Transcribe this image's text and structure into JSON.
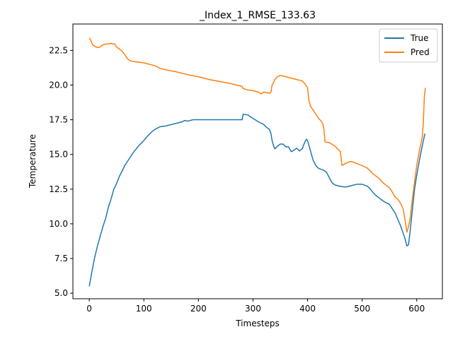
{
  "chart_data": {
    "type": "line",
    "title": "_Index_1_RMSE_133.63",
    "xlabel": "Timesteps",
    "ylabel": "Temperature",
    "xlim": [
      -30,
      647
    ],
    "ylim": [
      4.6,
      24.4
    ],
    "xticks": [
      0,
      100,
      200,
      300,
      400,
      500,
      600
    ],
    "xtick_labels": [
      "0",
      "100",
      "200",
      "300",
      "400",
      "500",
      "600"
    ],
    "yticks": [
      5.0,
      7.5,
      10.0,
      12.5,
      15.0,
      17.5,
      20.0,
      22.5
    ],
    "ytick_labels": [
      "5.0",
      "7.5",
      "10.0",
      "12.5",
      "15.0",
      "17.5",
      "20.0",
      "22.5"
    ],
    "grid": false,
    "legend": "top-right",
    "series": [
      {
        "name": "True",
        "color": "#1f77b4",
        "points": [
          [
            0,
            5.5
          ],
          [
            5,
            6.6
          ],
          [
            10,
            7.6
          ],
          [
            15,
            8.4
          ],
          [
            20,
            9.1
          ],
          [
            25,
            9.8
          ],
          [
            30,
            10.4
          ],
          [
            35,
            11.2
          ],
          [
            40,
            11.8
          ],
          [
            45,
            12.5
          ],
          [
            50,
            12.9
          ],
          [
            55,
            13.4
          ],
          [
            60,
            13.8
          ],
          [
            65,
            14.2
          ],
          [
            70,
            14.5
          ],
          [
            75,
            14.8
          ],
          [
            80,
            15.1
          ],
          [
            85,
            15.35
          ],
          [
            90,
            15.6
          ],
          [
            95,
            15.8
          ],
          [
            100,
            16.0
          ],
          [
            105,
            16.25
          ],
          [
            110,
            16.45
          ],
          [
            115,
            16.65
          ],
          [
            120,
            16.8
          ],
          [
            125,
            16.9
          ],
          [
            130,
            17.0
          ],
          [
            140,
            17.05
          ],
          [
            150,
            17.15
          ],
          [
            160,
            17.25
          ],
          [
            170,
            17.35
          ],
          [
            175,
            17.45
          ],
          [
            180,
            17.4
          ],
          [
            190,
            17.5
          ],
          [
            200,
            17.5
          ],
          [
            220,
            17.5
          ],
          [
            240,
            17.5
          ],
          [
            260,
            17.5
          ],
          [
            280,
            17.5
          ],
          [
            282,
            17.9
          ],
          [
            290,
            17.85
          ],
          [
            300,
            17.6
          ],
          [
            310,
            17.35
          ],
          [
            320,
            17.15
          ],
          [
            325,
            16.95
          ],
          [
            330,
            16.8
          ],
          [
            333,
            16.5
          ],
          [
            335,
            16.0
          ],
          [
            337,
            15.7
          ],
          [
            340,
            15.4
          ],
          [
            345,
            15.6
          ],
          [
            350,
            15.75
          ],
          [
            355,
            15.75
          ],
          [
            360,
            15.55
          ],
          [
            365,
            15.55
          ],
          [
            370,
            15.2
          ],
          [
            375,
            15.3
          ],
          [
            380,
            15.45
          ],
          [
            385,
            15.25
          ],
          [
            390,
            15.4
          ],
          [
            395,
            15.9
          ],
          [
            398,
            16.1
          ],
          [
            400,
            16.0
          ],
          [
            405,
            15.3
          ],
          [
            410,
            14.6
          ],
          [
            415,
            14.2
          ],
          [
            420,
            14.0
          ],
          [
            430,
            13.85
          ],
          [
            435,
            13.7
          ],
          [
            440,
            13.3
          ],
          [
            445,
            12.95
          ],
          [
            450,
            12.8
          ],
          [
            460,
            12.7
          ],
          [
            470,
            12.65
          ],
          [
            480,
            12.75
          ],
          [
            490,
            12.85
          ],
          [
            500,
            12.85
          ],
          [
            510,
            12.7
          ],
          [
            515,
            12.5
          ],
          [
            520,
            12.25
          ],
          [
            525,
            12.05
          ],
          [
            530,
            11.9
          ],
          [
            540,
            11.6
          ],
          [
            550,
            11.4
          ],
          [
            560,
            10.8
          ],
          [
            570,
            9.9
          ],
          [
            578,
            9.0
          ],
          [
            582,
            8.4
          ],
          [
            585,
            8.5
          ],
          [
            588,
            9.5
          ],
          [
            592,
            11.0
          ],
          [
            596,
            12.5
          ],
          [
            600,
            13.5
          ],
          [
            605,
            14.6
          ],
          [
            610,
            15.6
          ],
          [
            615,
            16.5
          ]
        ]
      },
      {
        "name": "Pred",
        "color": "#ff7f0e",
        "points": [
          [
            0,
            23.4
          ],
          [
            3,
            23.2
          ],
          [
            6,
            22.9
          ],
          [
            10,
            22.8
          ],
          [
            15,
            22.7
          ],
          [
            20,
            22.75
          ],
          [
            25,
            22.9
          ],
          [
            30,
            22.95
          ],
          [
            40,
            23.0
          ],
          [
            47,
            22.95
          ],
          [
            50,
            22.75
          ],
          [
            55,
            22.6
          ],
          [
            60,
            22.45
          ],
          [
            65,
            22.2
          ],
          [
            70,
            21.9
          ],
          [
            75,
            21.75
          ],
          [
            80,
            21.7
          ],
          [
            90,
            21.65
          ],
          [
            100,
            21.6
          ],
          [
            110,
            21.5
          ],
          [
            120,
            21.4
          ],
          [
            125,
            21.3
          ],
          [
            130,
            21.2
          ],
          [
            140,
            21.1
          ],
          [
            160,
            20.95
          ],
          [
            180,
            20.75
          ],
          [
            200,
            20.6
          ],
          [
            220,
            20.4
          ],
          [
            240,
            20.25
          ],
          [
            260,
            20.1
          ],
          [
            280,
            19.9
          ],
          [
            282,
            19.75
          ],
          [
            290,
            19.65
          ],
          [
            300,
            19.6
          ],
          [
            310,
            19.5
          ],
          [
            315,
            19.35
          ],
          [
            320,
            19.5
          ],
          [
            325,
            19.45
          ],
          [
            330,
            19.4
          ],
          [
            333,
            19.5
          ],
          [
            335,
            20.0
          ],
          [
            338,
            20.2
          ],
          [
            340,
            20.4
          ],
          [
            345,
            20.6
          ],
          [
            350,
            20.7
          ],
          [
            360,
            20.6
          ],
          [
            370,
            20.5
          ],
          [
            380,
            20.4
          ],
          [
            390,
            20.3
          ],
          [
            395,
            20.1
          ],
          [
            400,
            19.8
          ],
          [
            402,
            19.0
          ],
          [
            405,
            18.5
          ],
          [
            410,
            18.2
          ],
          [
            420,
            17.6
          ],
          [
            425,
            17.4
          ],
          [
            428,
            17.2
          ],
          [
            430,
            16.8
          ],
          [
            432,
            15.9
          ],
          [
            440,
            15.85
          ],
          [
            450,
            15.6
          ],
          [
            455,
            15.4
          ],
          [
            460,
            15.2
          ],
          [
            463,
            14.2
          ],
          [
            470,
            14.35
          ],
          [
            475,
            14.45
          ],
          [
            480,
            14.5
          ],
          [
            490,
            14.35
          ],
          [
            500,
            14.2
          ],
          [
            510,
            14.0
          ],
          [
            520,
            13.6
          ],
          [
            530,
            13.3
          ],
          [
            540,
            12.9
          ],
          [
            550,
            12.6
          ],
          [
            555,
            12.3
          ],
          [
            560,
            11.95
          ],
          [
            565,
            11.8
          ],
          [
            570,
            11.5
          ],
          [
            575,
            11.1
          ],
          [
            578,
            10.4
          ],
          [
            582,
            9.4
          ],
          [
            585,
            9.8
          ],
          [
            588,
            10.4
          ],
          [
            592,
            11.8
          ],
          [
            596,
            13.0
          ],
          [
            600,
            14.2
          ],
          [
            605,
            15.3
          ],
          [
            610,
            16.2
          ],
          [
            612,
            17.2
          ],
          [
            614,
            19.2
          ],
          [
            616,
            19.8
          ]
        ]
      }
    ]
  }
}
